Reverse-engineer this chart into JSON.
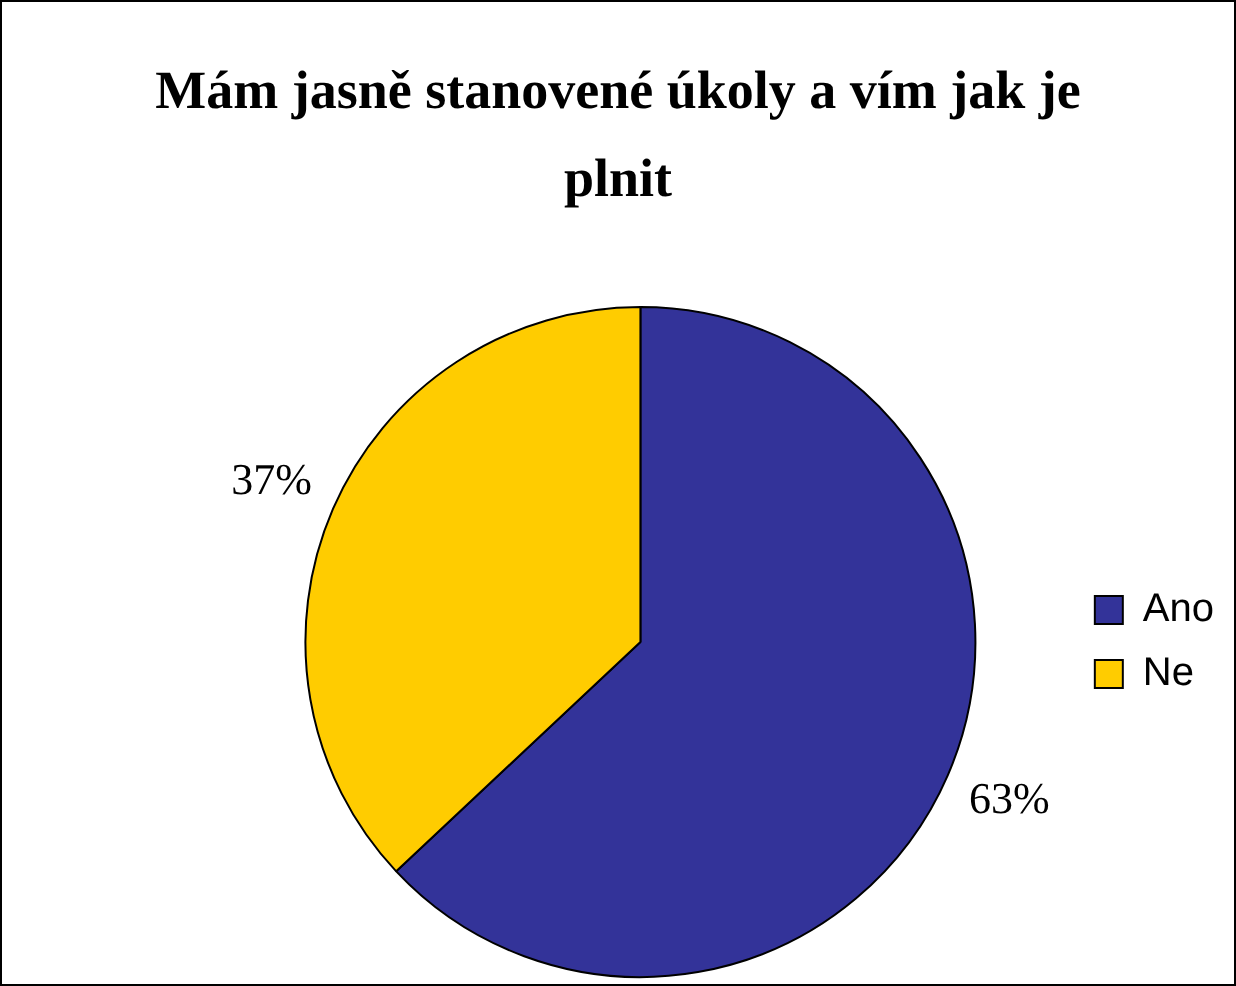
{
  "chart_data": {
    "type": "pie",
    "title": "Mám jasně stanovené úkoly a vím jak je plnit",
    "categories": [
      "Ano",
      "Ne"
    ],
    "values": [
      63,
      37
    ],
    "colors": [
      "#333399",
      "#ffcc00"
    ],
    "value_labels": [
      "63%",
      "37%"
    ],
    "legend": "right"
  }
}
